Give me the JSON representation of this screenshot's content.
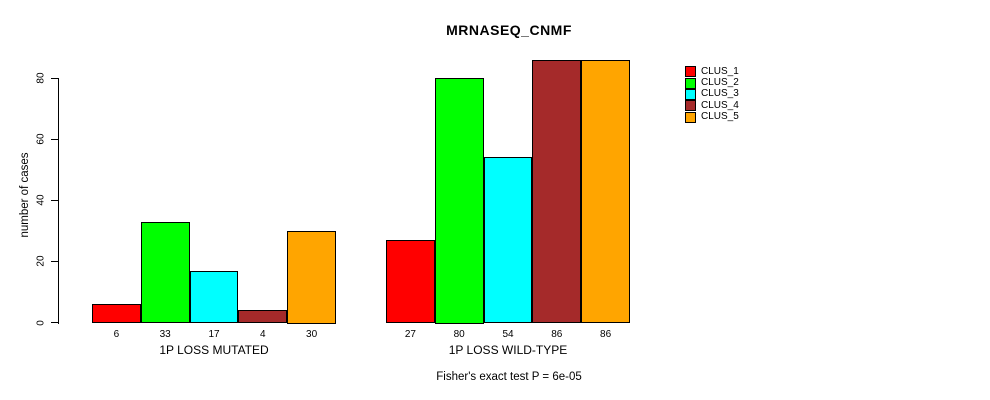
{
  "chart_data": {
    "type": "bar",
    "title": "MRNASEQ_CNMF",
    "ylabel": "number of cases",
    "xlabel": "",
    "footnote": "Fisher's exact test P = 6e-05",
    "categories": [
      "1P LOSS MUTATED",
      "1P LOSS WILD-TYPE"
    ],
    "series": [
      {
        "name": "CLUS_1",
        "color": "#ff0000",
        "values": [
          6,
          27
        ]
      },
      {
        "name": "CLUS_2",
        "color": "#00ff00",
        "values": [
          33,
          80
        ]
      },
      {
        "name": "CLUS_3",
        "color": "#00ffff",
        "values": [
          17,
          54
        ]
      },
      {
        "name": "CLUS_4",
        "color": "#a52a2a",
        "values": [
          4,
          86
        ]
      },
      {
        "name": "CLUS_5",
        "color": "#ffa500",
        "values": [
          30,
          86
        ]
      }
    ],
    "yticks": [
      0,
      20,
      40,
      60,
      80
    ],
    "ylim": [
      0,
      86
    ],
    "bar_value_labels": true,
    "grid": false,
    "legend_position": "right",
    "axis_color": "#000000",
    "background": "#ffffff"
  }
}
